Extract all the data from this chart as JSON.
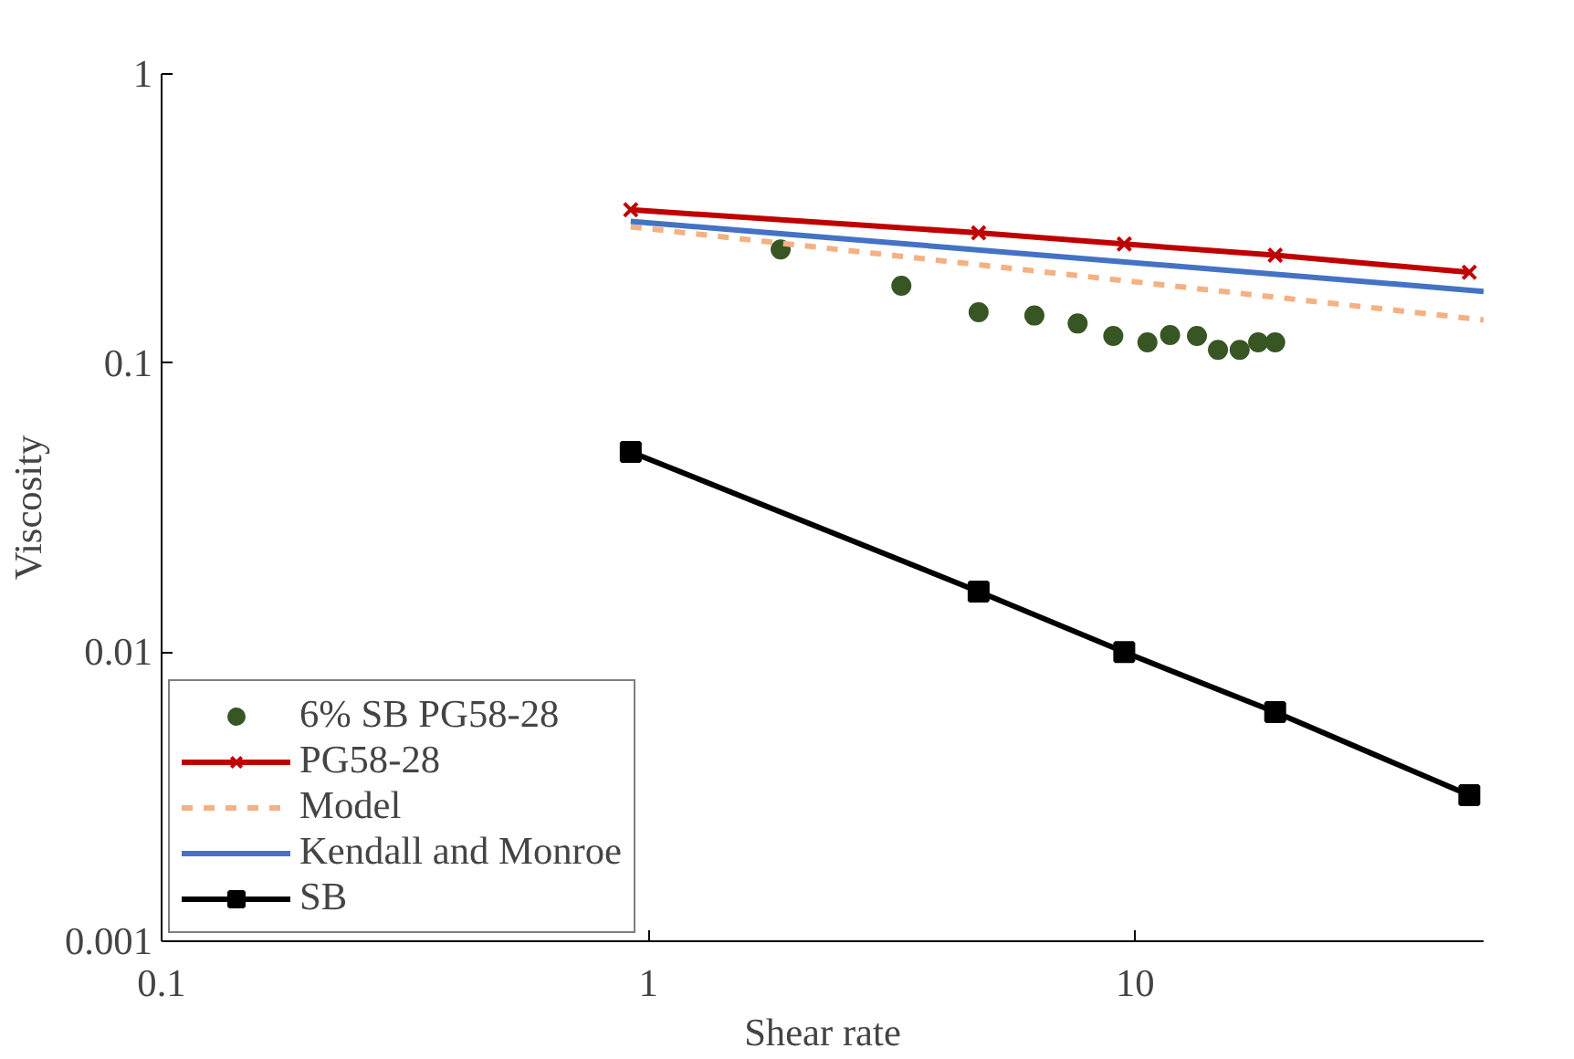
{
  "chart_data": {
    "type": "line",
    "xlabel": "Shear rate",
    "ylabel": "Viscosity",
    "log": "xy",
    "grid": false,
    "legend": "bottom left",
    "xlim": [
      0.1,
      52
    ],
    "ylim": [
      0.001,
      1
    ],
    "xticks": [
      0.1,
      1,
      10
    ],
    "yticks": [
      0.001,
      0.01,
      0.1,
      1
    ],
    "series": [
      {
        "name": "6% SB PG58-28",
        "type": "scatter",
        "marker": "circle",
        "color": "#375623",
        "x": [
          1.87,
          3.31,
          4.77,
          6.21,
          7.62,
          9.02,
          10.6,
          11.8,
          13.4,
          14.8,
          16.4,
          17.9,
          19.4
        ],
        "values": [
          0.247,
          0.185,
          0.15,
          0.146,
          0.137,
          0.124,
          0.118,
          0.125,
          0.124,
          0.111,
          0.111,
          0.118,
          0.118
        ]
      },
      {
        "name": "PG58-28",
        "marker": "cross",
        "line_style": "solid",
        "color": "#c00000",
        "x": [
          0.92,
          4.77,
          9.5,
          19.4,
          48.6
        ],
        "values": [
          0.339,
          0.282,
          0.258,
          0.236,
          0.206
        ]
      },
      {
        "name": "Model",
        "marker": "none",
        "line_style": "dashed",
        "color": "#f4b183",
        "x": [
          0.92,
          52
        ],
        "values": [
          0.296,
          0.141
        ]
      },
      {
        "name": "Kendall and Monroe",
        "marker": "none",
        "line_style": "solid",
        "color": "#4472c4",
        "x": [
          0.92,
          52
        ],
        "values": [
          0.309,
          0.177
        ]
      },
      {
        "name": "SB",
        "marker": "square",
        "line_style": "solid",
        "color": "#000000",
        "x": [
          0.92,
          4.77,
          9.5,
          19.4,
          48.6
        ],
        "values": [
          0.0493,
          0.0162,
          0.01,
          0.0062,
          0.0032
        ]
      }
    ]
  }
}
